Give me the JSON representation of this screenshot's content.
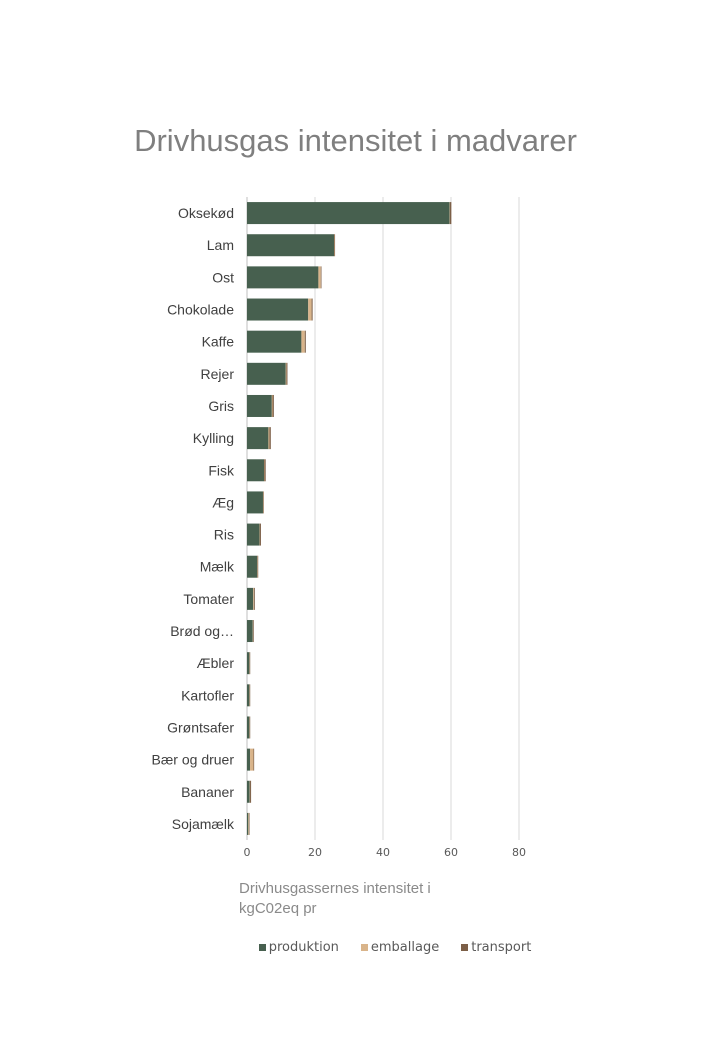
{
  "chart_data": {
    "type": "bar",
    "orientation": "horizontal",
    "stacked": true,
    "title": "Drivhusgas intensitet i madvarer",
    "xlabel": "Drivhusgassernes intensitet i kgC02eq pr",
    "ylabel": "",
    "xlim": [
      0,
      80
    ],
    "xticks": [
      0,
      20,
      40,
      60,
      80
    ],
    "grid": true,
    "legend_position": "bottom",
    "categories": [
      "Oksekød",
      "Lam",
      "Ost",
      "Chokolade",
      "Kaffe",
      "Rejer",
      "Gris",
      "Kylling",
      "Fisk",
      "Æg",
      "Ris",
      "Mælk",
      "Tomater",
      "Brød og…",
      "Æbler",
      "Kartofler",
      "Grøntsafer",
      "Bær og druer",
      "Bananer",
      "Sojamælk"
    ],
    "series": [
      {
        "name": "produktion",
        "color": "#47604f",
        "values": [
          59.6,
          25.6,
          21.0,
          18.0,
          16.0,
          11.4,
          7.3,
          6.3,
          5.0,
          4.7,
          3.7,
          3.0,
          1.8,
          1.7,
          0.7,
          0.7,
          0.7,
          0.9,
          0.8,
          0.4
        ]
      },
      {
        "name": "emballage",
        "color": "#d9b48a",
        "values": [
          0.1,
          0.1,
          0.7,
          1.0,
          1.0,
          0.2,
          0.2,
          0.3,
          0.1,
          0.1,
          0.1,
          0.1,
          0.2,
          0.1,
          0.1,
          0.1,
          0.1,
          1.0,
          0.1,
          0.2
        ]
      },
      {
        "name": "transport",
        "color": "#7c5f47",
        "values": [
          0.4,
          0.2,
          0.2,
          0.3,
          0.3,
          0.3,
          0.4,
          0.4,
          0.4,
          0.1,
          0.3,
          0.2,
          0.3,
          0.2,
          0.1,
          0.1,
          0.1,
          0.2,
          0.3,
          0.1
        ]
      }
    ]
  }
}
